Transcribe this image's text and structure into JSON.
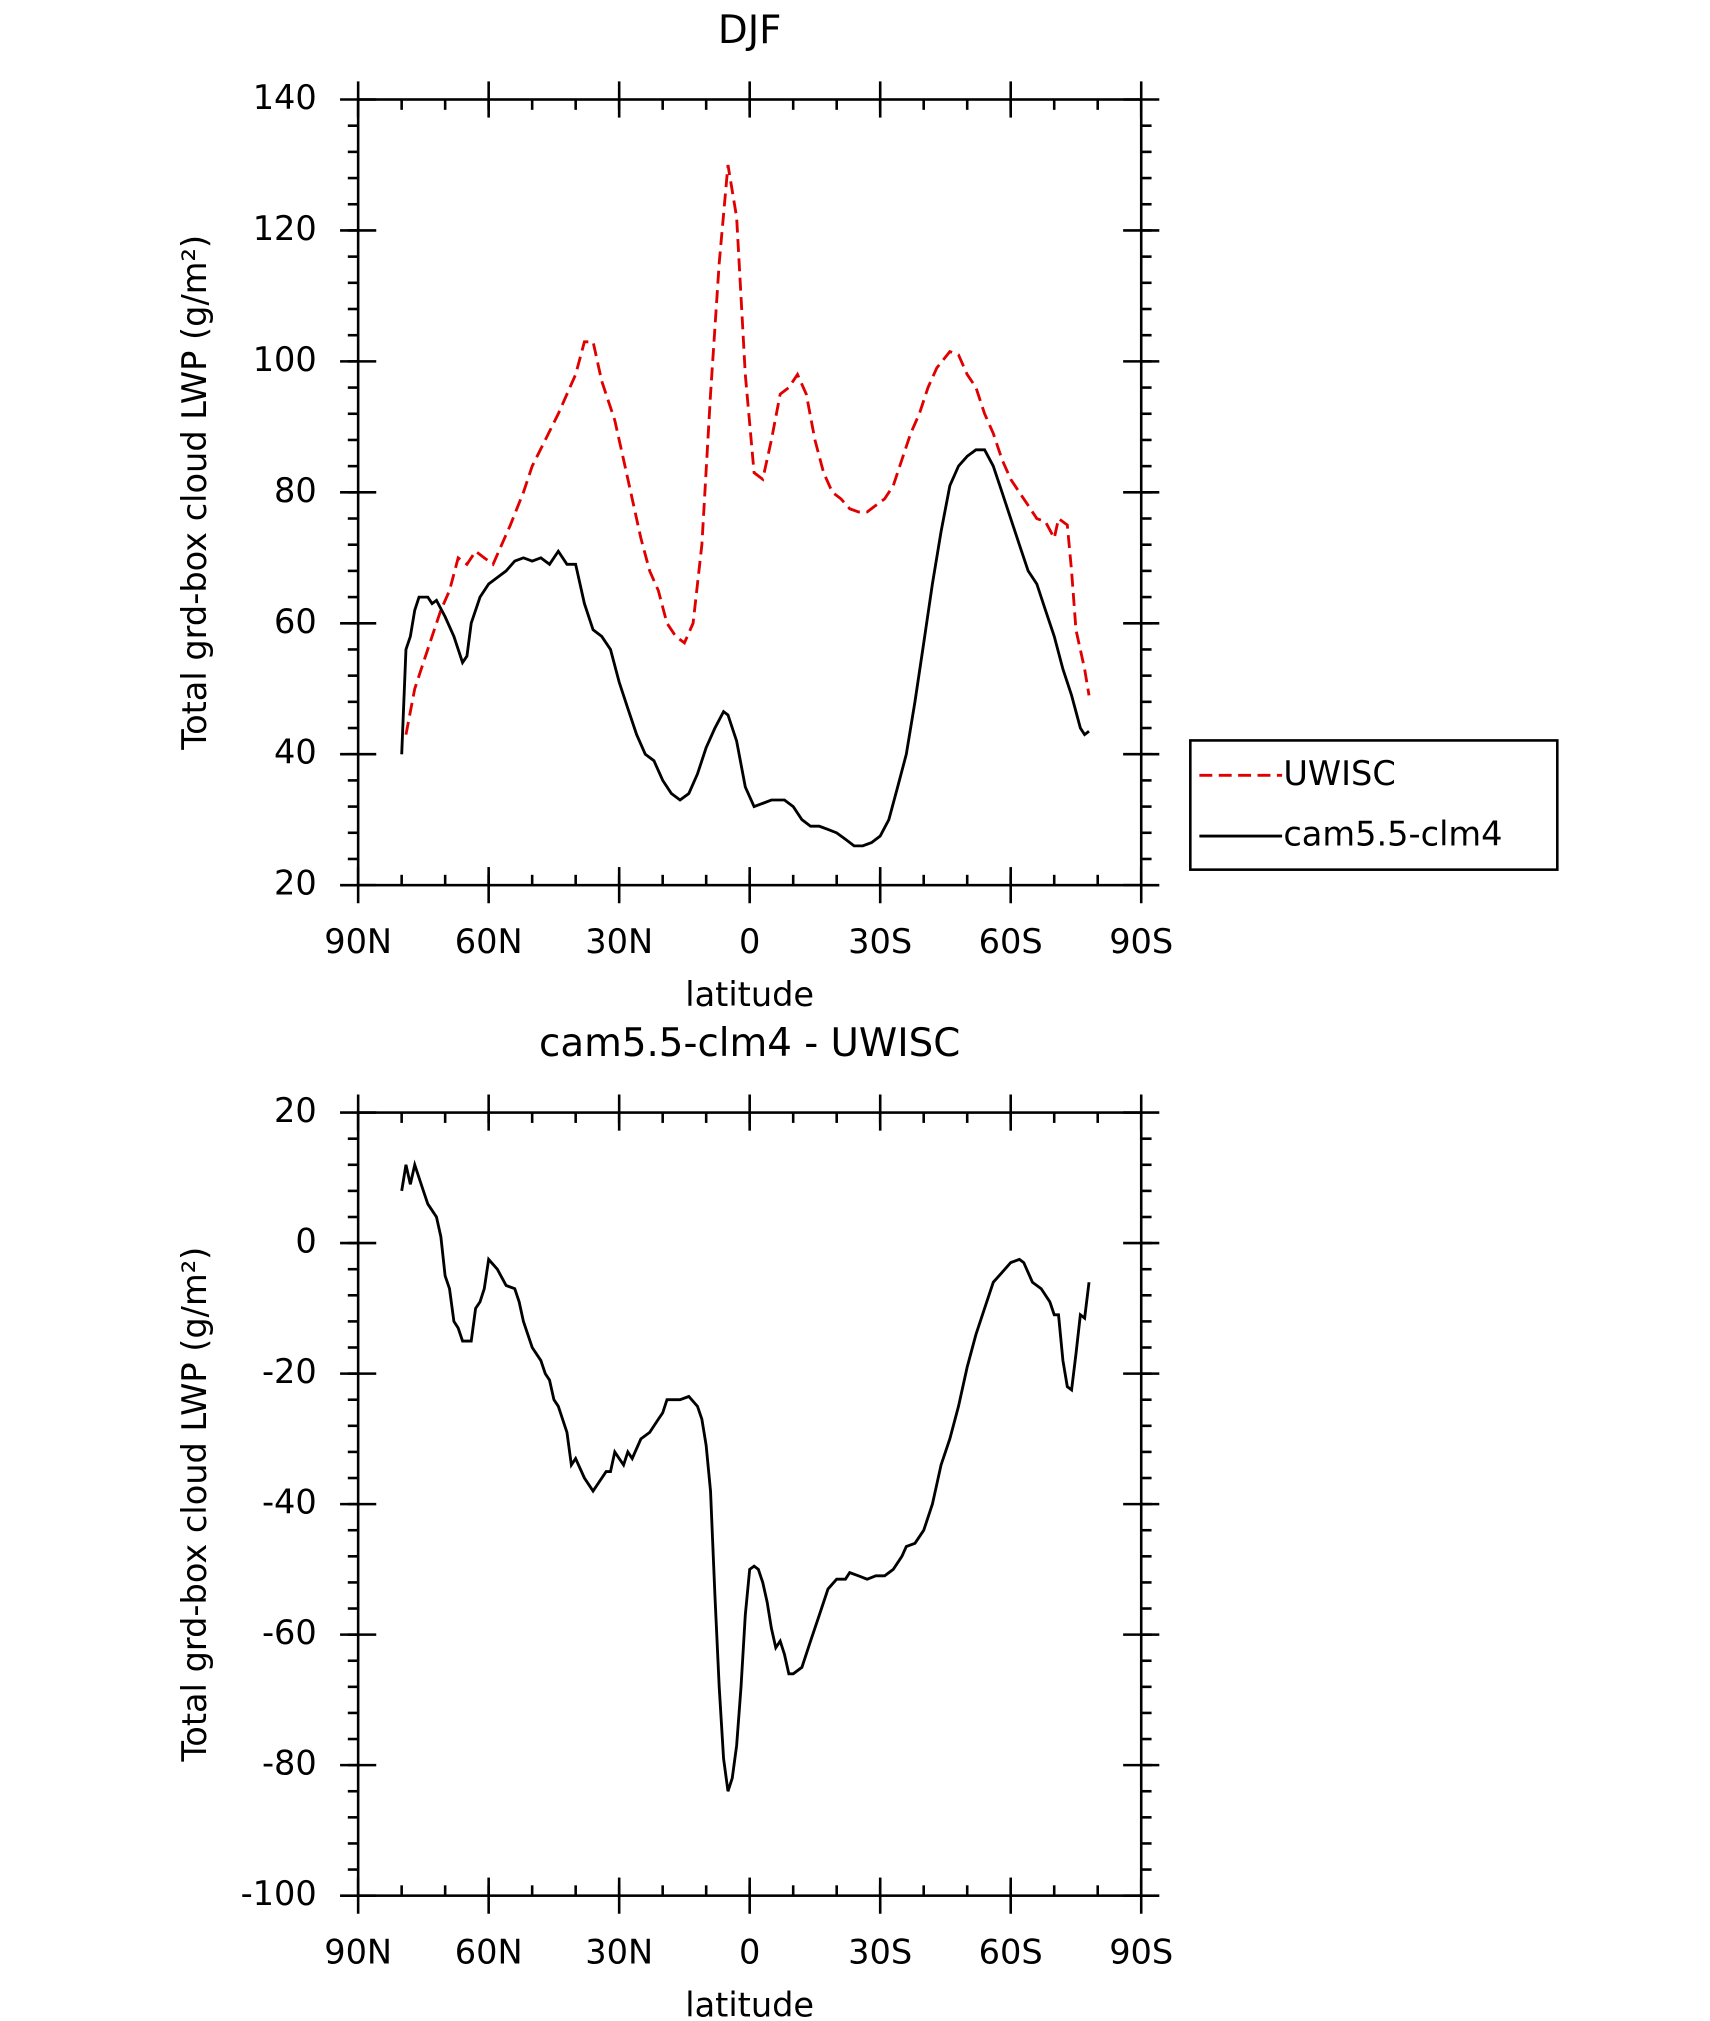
{
  "chart_data": [
    {
      "type": "line",
      "title": "DJF",
      "x_label": "latitude",
      "y_label": "Total grd-box cloud LWP (g/m²)",
      "xlim": [
        90,
        -90
      ],
      "xticks": [
        {
          "value": 90,
          "label": "90N"
        },
        {
          "value": 60,
          "label": "60N"
        },
        {
          "value": 30,
          "label": "30N"
        },
        0,
        {
          "value": -30,
          "label": "30S"
        },
        {
          "value": -60,
          "label": "60S"
        },
        {
          "value": -90,
          "label": "90S"
        }
      ],
      "ylim": [
        20,
        140
      ],
      "yticks": [
        20,
        40,
        60,
        80,
        100,
        120,
        140
      ],
      "legend": "right",
      "series": [
        {
          "name": "UWISC",
          "color": "#e00000",
          "dashed": true,
          "x": [
            79,
            77,
            75,
            73,
            71,
            69,
            67,
            65,
            63,
            61,
            59,
            57,
            55,
            52,
            50,
            47,
            44,
            42,
            40,
            38,
            36,
            34,
            31,
            29,
            27,
            25,
            23,
            21,
            19,
            17,
            15,
            13,
            11,
            9,
            7,
            5,
            3,
            1,
            -1,
            -3,
            -5,
            -7,
            -9,
            -11,
            -13,
            -15,
            -17,
            -19,
            -21,
            -23,
            -25,
            -27,
            -29,
            -31,
            -33,
            -35,
            -37,
            -39,
            -41,
            -43,
            -46,
            -48,
            -50,
            -52,
            -54,
            -56,
            -58,
            -60,
            -62,
            -64,
            -66,
            -68,
            -70,
            -71,
            -73,
            -74,
            -75,
            -77,
            -78
          ],
          "values": [
            43,
            50,
            54,
            58,
            62,
            65,
            70,
            69,
            71,
            70,
            69,
            72,
            75,
            80,
            84,
            88,
            92,
            95,
            98,
            103,
            103,
            97,
            91,
            85,
            79,
            73,
            68,
            65,
            60,
            58,
            57,
            60,
            72,
            95,
            115,
            130,
            122,
            98,
            83,
            82,
            88,
            95,
            96,
            98,
            95,
            88,
            83,
            80,
            79,
            77.5,
            77,
            77,
            78,
            79,
            81,
            85,
            89,
            92,
            96,
            99,
            101.5,
            101,
            98,
            96,
            92,
            89,
            85,
            82,
            80,
            78,
            76,
            75.5,
            73,
            76,
            75,
            68,
            59,
            53,
            49
          ]
        },
        {
          "name": "cam5.5-clm4",
          "color": "#000000",
          "dashed": false,
          "x": [
            80,
            79,
            78,
            77,
            76,
            74,
            73,
            72,
            70,
            68,
            66,
            65,
            64,
            62,
            60,
            58,
            56,
            54,
            52,
            50,
            48,
            46,
            44,
            42,
            40,
            38,
            36,
            34,
            32,
            30,
            28,
            26,
            24,
            22,
            20,
            18,
            16,
            14,
            12,
            10,
            8,
            6,
            5,
            3,
            1,
            -1,
            -3,
            -5,
            -8,
            -10,
            -12,
            -14,
            -16,
            -18,
            -20,
            -22,
            -24,
            -26,
            -28,
            -30,
            -32,
            -34,
            -36,
            -38,
            -40,
            -42,
            -44,
            -46,
            -48,
            -50,
            -52,
            -54,
            -56,
            -58,
            -60,
            -62,
            -64,
            -66,
            -68,
            -70,
            -72,
            -74,
            -76,
            -77,
            -78
          ],
          "values": [
            40,
            56,
            58,
            62,
            64,
            64,
            63,
            63.5,
            61,
            58,
            54,
            55,
            60,
            64,
            66,
            67,
            68,
            69.5,
            70,
            69.5,
            70,
            69,
            71,
            69,
            69,
            63,
            59,
            58,
            56,
            51,
            47,
            43,
            40,
            39,
            36,
            34,
            33,
            34,
            37,
            41,
            44,
            46.5,
            46,
            42,
            35,
            32,
            32.5,
            33,
            33,
            32,
            30,
            29,
            29,
            28.5,
            28,
            27,
            26,
            26,
            26.5,
            27.5,
            30,
            35,
            40,
            48,
            57,
            66,
            74,
            81,
            84,
            85.5,
            86.5,
            86.5,
            84,
            80,
            76,
            72,
            68,
            66,
            62,
            58,
            53,
            49,
            44,
            43,
            43.5
          ]
        }
      ]
    },
    {
      "type": "line",
      "title": "cam5.5-clm4 - UWISC",
      "x_label": "latitude",
      "y_label": "Total grd-box cloud LWP (g/m²)",
      "xlim": [
        90,
        -90
      ],
      "xticks": [
        {
          "value": 90,
          "label": "90N"
        },
        {
          "value": 60,
          "label": "60N"
        },
        {
          "value": 30,
          "label": "30N"
        },
        0,
        {
          "value": -30,
          "label": "30S"
        },
        {
          "value": -60,
          "label": "60S"
        },
        {
          "value": -90,
          "label": "90S"
        }
      ],
      "ylim": [
        -100,
        20
      ],
      "yticks": [
        -100,
        -80,
        -60,
        -40,
        -20,
        0,
        20
      ],
      "series": [
        {
          "color": "#000000",
          "dashed": false,
          "x": [
            80,
            79,
            78,
            77,
            75,
            74,
            72,
            71,
            70,
            69,
            68,
            67,
            66,
            64,
            63,
            62,
            61,
            60,
            58,
            56,
            54,
            53,
            52,
            50,
            48,
            47,
            46,
            45,
            44,
            43,
            42,
            41,
            40,
            38,
            36,
            35,
            33,
            32,
            31,
            30,
            29,
            28,
            27,
            25,
            23,
            21,
            20,
            19,
            18,
            16,
            14,
            12,
            11,
            10,
            9,
            8,
            7,
            6,
            5,
            4,
            3,
            2,
            1,
            0,
            -1,
            -2,
            -3,
            -4,
            -5,
            -6,
            -7,
            -8,
            -9,
            -10,
            -12,
            -14,
            -16,
            -18,
            -20,
            -22,
            -23,
            -25,
            -27,
            -29,
            -31,
            -33,
            -35,
            -36,
            -38,
            -40,
            -42,
            -44,
            -46,
            -48,
            -50,
            -52,
            -54,
            -56,
            -58,
            -60,
            -62,
            -63,
            -65,
            -67,
            -69,
            -70,
            -71,
            -72,
            -73,
            -74,
            -75,
            -76,
            -77,
            -78
          ],
          "values": [
            8,
            12,
            9,
            12,
            8,
            6,
            4,
            1,
            -5,
            -7,
            -12,
            -13,
            -15,
            -15,
            -10,
            -9,
            -7,
            -2.5,
            -4,
            -6.5,
            -7,
            -9,
            -12,
            -16,
            -18,
            -20,
            -21,
            -24,
            -25,
            -27,
            -29,
            -34,
            -33,
            -36,
            -38,
            -37,
            -35,
            -35,
            -32,
            -33,
            -34,
            -32,
            -33,
            -30,
            -29,
            -27,
            -26,
            -24,
            -24,
            -24,
            -23.5,
            -25,
            -27,
            -31,
            -38,
            -54,
            -68,
            -79,
            -84,
            -82,
            -77,
            -68,
            -57,
            -50,
            -49.5,
            -50,
            -52,
            -55,
            -59,
            -62,
            -61,
            -63,
            -66,
            -66,
            -65,
            -61,
            -57,
            -53,
            -51.5,
            -51.5,
            -50.5,
            -51,
            -51.5,
            -51,
            -51,
            -50,
            -48,
            -46.5,
            -46,
            -44,
            -40,
            -34,
            -30,
            -25,
            -19,
            -14,
            -10,
            -6,
            -4.5,
            -3,
            -2.5,
            -3,
            -6,
            -7,
            -9,
            -11,
            -11,
            -18,
            -22,
            -22.5,
            -17,
            -11,
            -11.5,
            -6
          ]
        }
      ]
    }
  ]
}
